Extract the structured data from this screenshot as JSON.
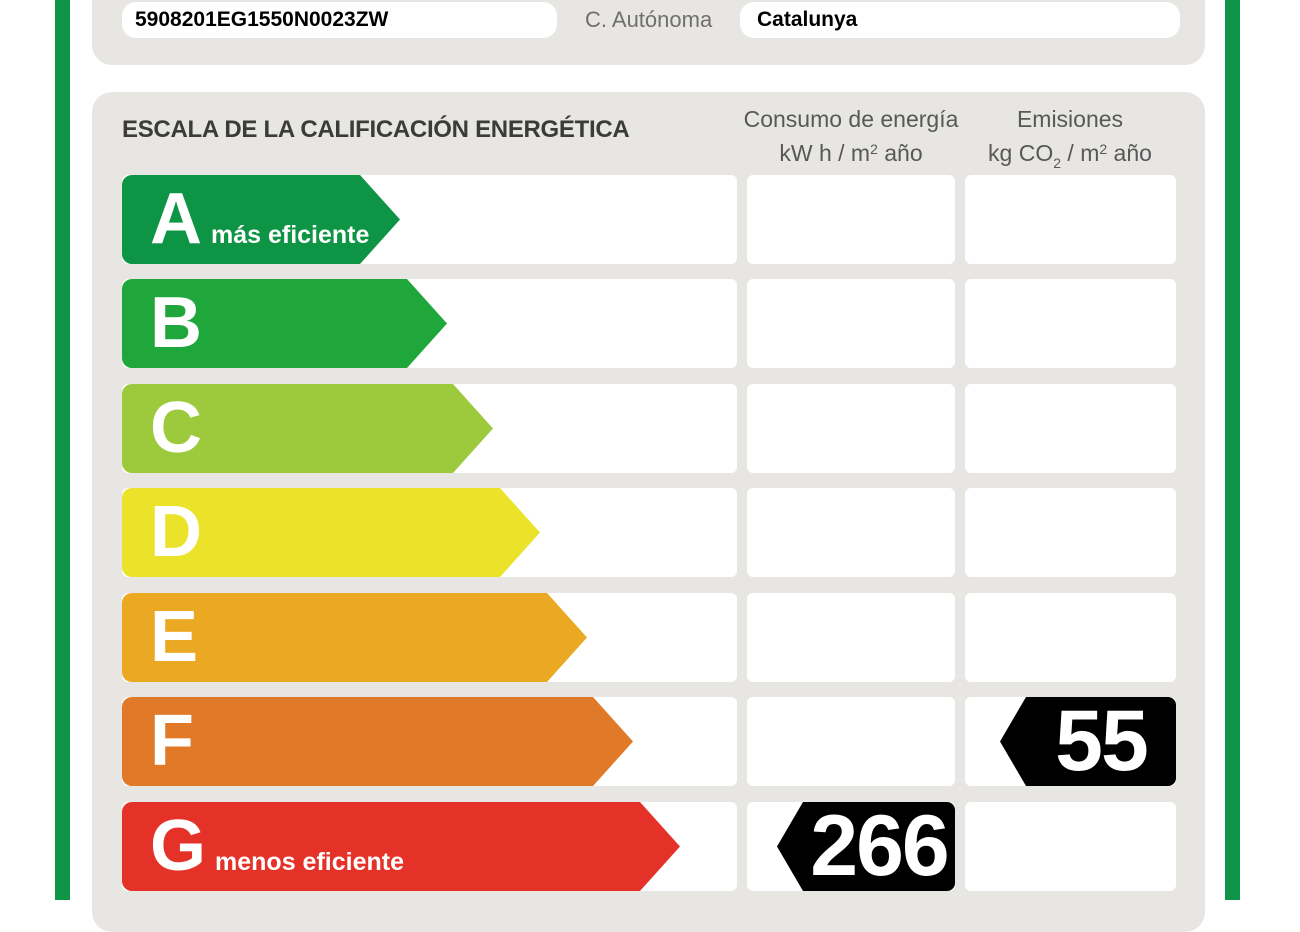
{
  "colors": {
    "frame_green": "#0E9548",
    "panel_gray": "#E7E6E3",
    "title_text": "#3B3B3A",
    "label_gray": "#706F6F",
    "header_gray": "#58585A",
    "badge_black": "#000000"
  },
  "top_bar": {
    "registry_code": "5908201EG1550N0023ZW",
    "region_label": "C. Autónoma",
    "region_value": "Catalunya"
  },
  "panel": {
    "title": "ESCALA DE LA CALIFICACIÓN ENERGÉTICA",
    "columns": {
      "consumo": {
        "line1": "Consumo de energía",
        "l2a": "kW h  / m",
        "l2sup": "2",
        "l2b": " año"
      },
      "emisiones": {
        "line1": "Emisiones",
        "l2a": "kg CO",
        "l2sub": "2",
        "l2b": "  / m",
        "l2sup": "2",
        "l2c": " año"
      }
    }
  },
  "chart_data": {
    "type": "bar",
    "title": "ESCALA DE LA CALIFICACIÓN ENERGÉTICA",
    "categories": [
      "A",
      "B",
      "C",
      "D",
      "E",
      "F",
      "G"
    ],
    "ratings": [
      {
        "letter": "A",
        "label": "más eficiente",
        "color": "#0D9445",
        "arrow_width": 278
      },
      {
        "letter": "B",
        "label": "",
        "color": "#1FA73C",
        "arrow_width": 325
      },
      {
        "letter": "C",
        "label": "",
        "color": "#9DC93D",
        "arrow_width": 371
      },
      {
        "letter": "D",
        "label": "",
        "color": "#EAE32A",
        "arrow_width": 418
      },
      {
        "letter": "E",
        "label": "",
        "color": "#EBA822",
        "arrow_width": 465
      },
      {
        "letter": "F",
        "label": "",
        "color": "#E07A28",
        "arrow_width": 511
      },
      {
        "letter": "G",
        "label": "menos eficiente",
        "color": "#E53228",
        "arrow_width": 558
      }
    ],
    "series": [
      {
        "name": "Consumo de energía kW h / m2 año",
        "rating": "G",
        "value": 266
      },
      {
        "name": "Emisiones kg CO2 / m2 año",
        "rating": "F",
        "value": 55
      }
    ],
    "legend_position": "none",
    "grid": false
  },
  "badges": {
    "consumo_value": "266",
    "emisiones_value": "55"
  }
}
